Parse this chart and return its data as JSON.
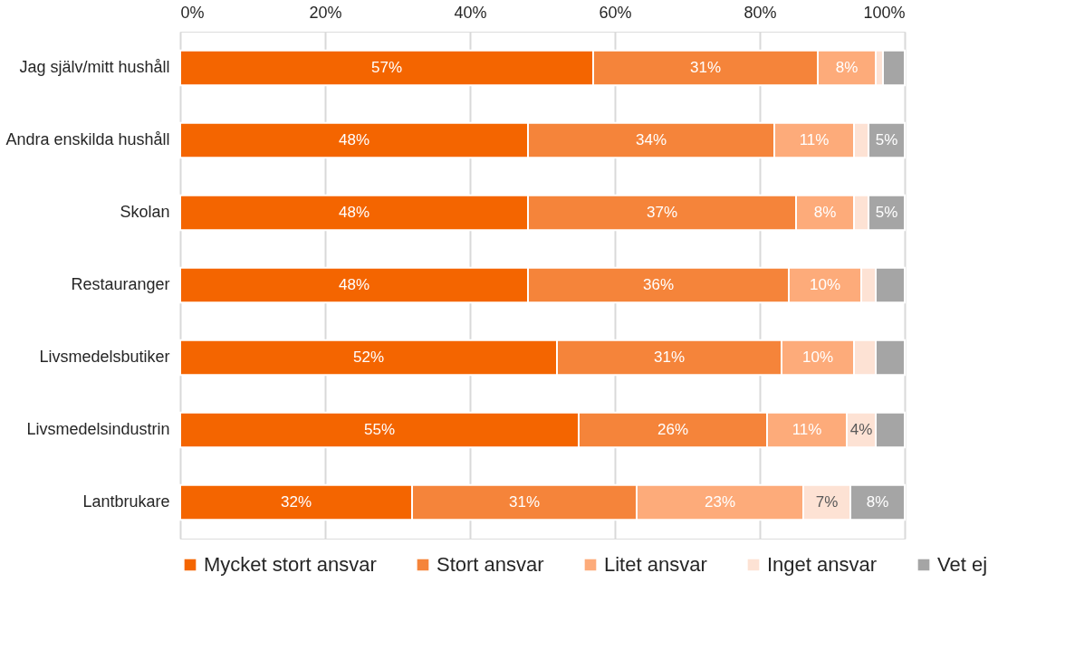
{
  "chart_data": {
    "type": "bar",
    "orientation": "horizontal",
    "stacked": true,
    "categories": [
      "Jag själv/mitt hushåll",
      "Andra enskilda hushåll",
      "Skolan",
      "Restauranger",
      "Livsmedelsbutiker",
      "Livsmedelsindustrin",
      "Lantbrukare"
    ],
    "series": [
      {
        "name": "Mycket stort ansvar",
        "color": "#f46500",
        "values": [
          57,
          48,
          48,
          48,
          52,
          55,
          32
        ],
        "value_labels": [
          "57%",
          "48%",
          "48%",
          "48%",
          "52%",
          "55%",
          "32%"
        ]
      },
      {
        "name": "Stort ansvar",
        "color": "#f5843a",
        "values": [
          31,
          34,
          37,
          36,
          31,
          26,
          31
        ],
        "value_labels": [
          "31%",
          "34%",
          "37%",
          "36%",
          "31%",
          "26%",
          "31%"
        ]
      },
      {
        "name": "Litet ansvar",
        "color": "#fdab7a",
        "values": [
          8,
          11,
          8,
          10,
          10,
          11,
          23
        ],
        "value_labels": [
          "8%",
          "11%",
          "8%",
          "10%",
          "10%",
          "11%",
          "23%"
        ]
      },
      {
        "name": "Inget ansvar",
        "color": "#fde2d4",
        "values": [
          1,
          2,
          2,
          2,
          3,
          4,
          6.5
        ],
        "value_labels": [
          null,
          null,
          null,
          null,
          null,
          "4%",
          "7%"
        ]
      },
      {
        "name": "Vet ej",
        "color": "#a5a5a5",
        "values": [
          3,
          5,
          5,
          4,
          4,
          4,
          7.5
        ],
        "value_labels": [
          null,
          "5%",
          "5%",
          null,
          null,
          null,
          "8%"
        ]
      }
    ],
    "xlim": [
      0,
      100
    ],
    "xticks": [
      {
        "value": 0,
        "label": "0%"
      },
      {
        "value": 20,
        "label": "20%"
      },
      {
        "value": 40,
        "label": "40%"
      },
      {
        "value": 60,
        "label": "60%"
      },
      {
        "value": 80,
        "label": "80%"
      },
      {
        "value": 100,
        "label": "100%"
      }
    ],
    "grid": "x",
    "legend": "bottom"
  }
}
